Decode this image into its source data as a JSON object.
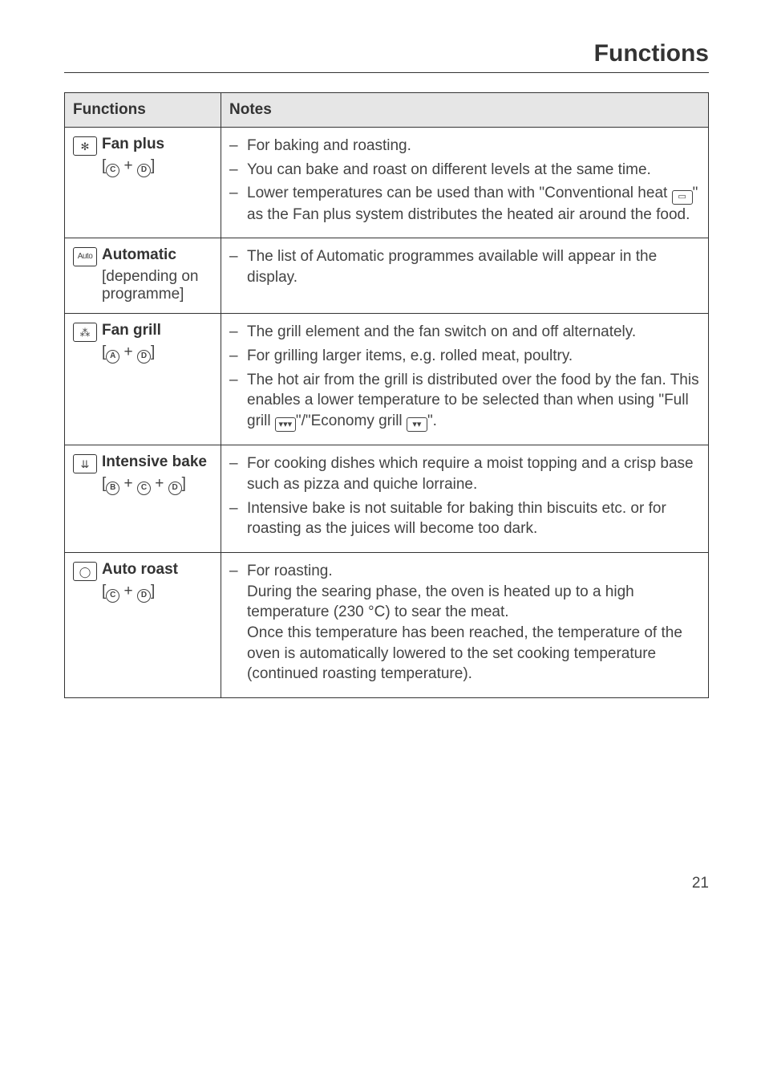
{
  "page": {
    "title": "Functions",
    "number": "21"
  },
  "table": {
    "headers": [
      "Functions",
      "Notes"
    ],
    "rows": [
      {
        "icon_glyph": "✻",
        "name": "Fan plus",
        "sub_parts": {
          "open": "[",
          "l1": "C",
          "plus": " + ",
          "l2": "D",
          "close": "]"
        },
        "notes": [
          {
            "text": "For baking and roasting."
          },
          {
            "text": "You can bake and roast on different levels at the same time."
          },
          {
            "segments": [
              {
                "t": "Lower temperatures can be used than with \"Conventional heat "
              },
              {
                "icon": "▭"
              },
              {
                "t": "\" as the Fan plus system distributes the heated air around the food."
              }
            ]
          }
        ]
      },
      {
        "icon_glyph": "Auto",
        "icon_class": "auto",
        "name": "Automatic",
        "plain_sub": "[depending on programme]",
        "notes": [
          {
            "text": "The list of Automatic programmes available will appear in the display."
          }
        ]
      },
      {
        "icon_glyph": "⁂",
        "name": "Fan grill",
        "sub_parts": {
          "open": "[",
          "l1": "A",
          "plus": " + ",
          "l2": "D",
          "close": "]"
        },
        "notes": [
          {
            "text": "The grill element and the fan switch on and off alternately."
          },
          {
            "text": "For grilling larger items, e.g. rolled meat, poultry."
          },
          {
            "segments": [
              {
                "t": "The hot air from the grill is distributed over the food by the fan. This enables a lower temperature to be selected than when using \"Full grill "
              },
              {
                "icon": "▾▾▾"
              },
              {
                "t": "\"/\"Economy grill "
              },
              {
                "icon": "▾▾"
              },
              {
                "t": "\"."
              }
            ]
          }
        ]
      },
      {
        "icon_glyph": "⇊",
        "name": "Intensive bake",
        "sub_parts3": {
          "open": "[",
          "l1": "B",
          "p1": " + ",
          "l2": "C",
          "p2": " + ",
          "l3": "D",
          "close": "]"
        },
        "notes": [
          {
            "text": "For cooking dishes which require a moist topping and a crisp base such as pizza and quiche lorraine."
          },
          {
            "text": "Intensive bake is not suitable for baking thin biscuits etc. or for roasting as the juices will become too dark."
          }
        ]
      },
      {
        "icon_glyph": "◯",
        "name": "Auto roast",
        "sub_parts": {
          "open": "[",
          "l1": "C",
          "plus": " + ",
          "l2": "D",
          "close": "]"
        },
        "notes": [
          {
            "text": "For roasting.\nDuring the searing phase, the oven is heated up to a high temperature (230 °C) to sear the meat.\nOnce this temperature has been reached, the temperature of the oven is automatically lowered to the set cooking temperature (continued roasting temperature)."
          }
        ]
      }
    ]
  }
}
